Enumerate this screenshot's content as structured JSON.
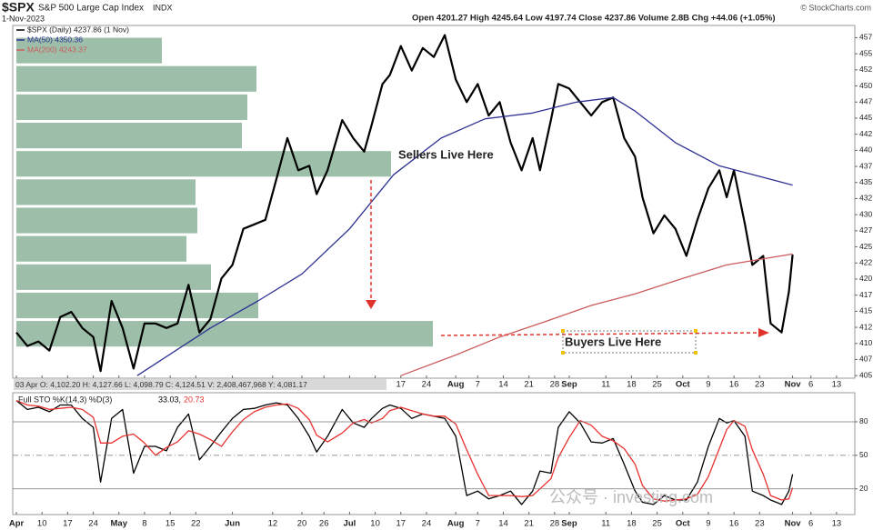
{
  "header": {
    "credit": "© StockCharts.com",
    "watermark": "公众号 · investing.com"
  },
  "chart_data": [
    {
      "type": "line",
      "title": "$SPX",
      "subtitle": "S&P 500 Large Cap Index",
      "exchange": "INDX",
      "date": "1-Nov-2023",
      "quote": "Open 4201.27  High 4245.64  Low 4197.74  Close 4237.86  Volume 2.8B  Chg +44.06 (+1.05%)",
      "info_bar": "03 Apr O: 4,102.20   H: 4,127.66   L: 4,098.79   C: 4,124.51   V: 2,408,467,968   Y: 4,081.17",
      "annotations": [
        "Sellers Live Here",
        "Buyers Live Here"
      ],
      "x": [
        0,
        3,
        6,
        9,
        12,
        15,
        18,
        21,
        23,
        26,
        29,
        32,
        35,
        38,
        41,
        44,
        47,
        50,
        53,
        56,
        59,
        62,
        65,
        68,
        71,
        74,
        77,
        80,
        82,
        85,
        89,
        92,
        95,
        97,
        100,
        102,
        105,
        108,
        111,
        114,
        117,
        120,
        123,
        126,
        129,
        132,
        135,
        138,
        141,
        143,
        146,
        148,
        151,
        154,
        157,
        160,
        163,
        166,
        169,
        171,
        174,
        177,
        180,
        183,
        186,
        189,
        192,
        194,
        196,
        199,
        201,
        204,
        206,
        209,
        211,
        212
      ],
      "xlim": [
        -1,
        229
      ],
      "xticks": [
        {
          "value": 0,
          "label": "Apr"
        },
        {
          "value": 7,
          "label": "10"
        },
        {
          "value": 14,
          "label": "17"
        },
        {
          "value": 21,
          "label": "24"
        },
        {
          "value": 28,
          "label": "May"
        },
        {
          "value": 35,
          "label": "8"
        },
        {
          "value": 42,
          "label": "15"
        },
        {
          "value": 49,
          "label": "22"
        },
        {
          "value": 59,
          "label": "Jun"
        },
        {
          "value": 70,
          "label": "12"
        },
        {
          "value": 78,
          "label": "20"
        },
        {
          "value": 84,
          "label": "26"
        },
        {
          "value": 91,
          "label": "Jul"
        },
        {
          "value": 98,
          "label": "10"
        },
        {
          "value": 105,
          "label": "17"
        },
        {
          "value": 112,
          "label": "24"
        },
        {
          "value": 120,
          "label": "Aug"
        },
        {
          "value": 126,
          "label": "7"
        },
        {
          "value": 133,
          "label": "14"
        },
        {
          "value": 140,
          "label": "21"
        },
        {
          "value": 147,
          "label": "28"
        },
        {
          "value": 151,
          "label": "Sep"
        },
        {
          "value": 161,
          "label": "11"
        },
        {
          "value": 168,
          "label": "18"
        },
        {
          "value": 175,
          "label": "25"
        },
        {
          "value": 182,
          "label": "Oct"
        },
        {
          "value": 189,
          "label": "9"
        },
        {
          "value": 196,
          "label": "16"
        },
        {
          "value": 203,
          "label": "23"
        },
        {
          "value": 212,
          "label": "Nov"
        },
        {
          "value": 217,
          "label": "6"
        },
        {
          "value": 224,
          "label": "13"
        }
      ],
      "ylim": [
        404.6,
        459.4
      ],
      "yticks": [
        405,
        {
          "value": 407.5,
          "label": "407"
        },
        410,
        {
          "value": 412.5,
          "label": "412"
        },
        415,
        {
          "value": 417.5,
          "label": "417"
        },
        420,
        {
          "value": 422.5,
          "label": "422"
        },
        425,
        {
          "value": 427.5,
          "label": "427"
        },
        430,
        {
          "value": 432.5,
          "label": "432"
        },
        435,
        {
          "value": 437.5,
          "label": "437"
        },
        440,
        {
          "value": 442.5,
          "label": "442"
        },
        445,
        {
          "value": 447.5,
          "label": "447"
        },
        450,
        {
          "value": 452.5,
          "label": "452"
        },
        455,
        {
          "value": 457.5,
          "label": "457"
        }
      ],
      "grid": false,
      "series": [
        {
          "name": "$SPX (Daily) 4237.86 (1 Nov)",
          "color": "#000000",
          "values": [
            411.7,
            409.6,
            410.3,
            408.9,
            414.1,
            414.9,
            412.4,
            411.0,
            405.7,
            416.6,
            412.4,
            406.1,
            413.1,
            413.1,
            412.4,
            413.1,
            419.1,
            411.7,
            413.8,
            420.1,
            422.2,
            427.8,
            428.5,
            429.2,
            435.5,
            441.9,
            436.9,
            437.6,
            433.2,
            436.9,
            444.7,
            441.9,
            439.8,
            443.9,
            450.3,
            451.7,
            456.2,
            452.4,
            455.9,
            454.5,
            457.9,
            451.0,
            447.5,
            450.3,
            445.4,
            447.5,
            441.2,
            436.9,
            441.9,
            436.9,
            444.7,
            450.3,
            449.6,
            447.5,
            445.4,
            447.5,
            448.2,
            441.9,
            439.0,
            432.7,
            427.1,
            429.9,
            427.8,
            423.6,
            429.2,
            434.1,
            436.9,
            432.7,
            436.9,
            428.5,
            422.2,
            423.6,
            413.1,
            411.7,
            418.0,
            423.8
          ]
        },
        {
          "name": "MA(50) 4350.36",
          "color": "#2e3192",
          "x": [
            33,
            53,
            66,
            78,
            91,
            103,
            116,
            128,
            141,
            153,
            163,
            169,
            180,
            192,
            212
          ],
          "values": [
            405,
            412.4,
            416.6,
            420.8,
            427.8,
            436.2,
            441.9,
            444.9,
            445.8,
            447.5,
            448.2,
            446.1,
            441.2,
            437.6,
            434.6
          ]
        },
        {
          "name": "MA(200) 4243.37",
          "color": "#cc5c5c",
          "x": [
            105,
            120,
            132,
            145,
            157,
            169,
            182,
            194,
            212
          ],
          "values": [
            405,
            408.2,
            411.0,
            413.5,
            415.9,
            417.7,
            420.1,
            422.2,
            423.9
          ]
        }
      ],
      "volume_by_price": {
        "color": "#9dbfa9",
        "bins": [
          409.3,
          413.7,
          418.1,
          422.5,
          426.9,
          431.3,
          435.7,
          440.1,
          444.5,
          448.9,
          453.3,
          457.7
        ],
        "values": [
          458,
          266,
          214,
          187,
          199,
          197,
          412,
          248,
          254,
          264,
          160
        ]
      }
    },
    {
      "type": "line",
      "title": "Full STO %K(14,3) %D(3)",
      "x": [
        0,
        3,
        6,
        9,
        12,
        15,
        18,
        21,
        23,
        26,
        29,
        32,
        35,
        38,
        41,
        44,
        47,
        50,
        53,
        56,
        59,
        62,
        65,
        68,
        71,
        74,
        77,
        80,
        82,
        85,
        89,
        92,
        95,
        97,
        100,
        102,
        105,
        108,
        111,
        114,
        117,
        120,
        123,
        126,
        129,
        132,
        135,
        138,
        141,
        143,
        146,
        148,
        151,
        154,
        157,
        160,
        163,
        166,
        169,
        171,
        174,
        177,
        180,
        183,
        186,
        189,
        192,
        194,
        196,
        199,
        201,
        204,
        206,
        209,
        211,
        212
      ],
      "xlim": [
        -1,
        229
      ],
      "xticks": [
        {
          "value": 0,
          "label": "Apr"
        },
        {
          "value": 7,
          "label": "10"
        },
        {
          "value": 14,
          "label": "17"
        },
        {
          "value": 21,
          "label": "24"
        },
        {
          "value": 28,
          "label": "May"
        },
        {
          "value": 35,
          "label": "8"
        },
        {
          "value": 42,
          "label": "15"
        },
        {
          "value": 49,
          "label": "22"
        },
        {
          "value": 59,
          "label": "Jun"
        },
        {
          "value": 70,
          "label": "12"
        },
        {
          "value": 78,
          "label": "20"
        },
        {
          "value": 84,
          "label": "26"
        },
        {
          "value": 91,
          "label": "Jul"
        },
        {
          "value": 98,
          "label": "10"
        },
        {
          "value": 105,
          "label": "17"
        },
        {
          "value": 112,
          "label": "24"
        },
        {
          "value": 120,
          "label": "Aug"
        },
        {
          "value": 126,
          "label": "7"
        },
        {
          "value": 133,
          "label": "14"
        },
        {
          "value": 140,
          "label": "21"
        },
        {
          "value": 147,
          "label": "28"
        },
        {
          "value": 151,
          "label": "Sep"
        },
        {
          "value": 161,
          "label": "11"
        },
        {
          "value": 168,
          "label": "18"
        },
        {
          "value": 175,
          "label": "25"
        },
        {
          "value": 182,
          "label": "Oct"
        },
        {
          "value": 189,
          "label": "9"
        },
        {
          "value": 196,
          "label": "16"
        },
        {
          "value": 203,
          "label": "23"
        },
        {
          "value": 212,
          "label": "Nov"
        },
        {
          "value": 217,
          "label": "6"
        },
        {
          "value": 224,
          "label": "13"
        }
      ],
      "ylim": [
        -3,
        106
      ],
      "yticks": [
        20,
        50,
        80
      ],
      "grid": true,
      "series": [
        {
          "name": "33.03,",
          "color": "#000000",
          "values": [
            99,
            91,
            93,
            89,
            95,
            95,
            83,
            75,
            26,
            83,
            91,
            34,
            58,
            58,
            54,
            75,
            87,
            46,
            58,
            71,
            83,
            91,
            92,
            95,
            97,
            95,
            83,
            67,
            53,
            67,
            91,
            79,
            75,
            83,
            92,
            95,
            92,
            83,
            87,
            85,
            83,
            67,
            14,
            18,
            11,
            14,
            18,
            6,
            18,
            36,
            34,
            75,
            89,
            79,
            62,
            61,
            65,
            42,
            18,
            8,
            6,
            14,
            10,
            10,
            26,
            58,
            83,
            79,
            81,
            67,
            18,
            14,
            10,
            6,
            18,
            33
          ]
        },
        {
          "name": "20.73",
          "color": "#e8312f",
          "values": [
            99,
            95,
            94,
            91,
            92,
            93,
            91,
            84,
            61,
            61,
            67,
            69,
            61,
            50,
            57,
            62,
            72,
            69,
            64,
            58,
            71,
            82,
            89,
            93,
            95,
            96,
            92,
            82,
            68,
            62,
            70,
            79,
            82,
            79,
            83,
            90,
            93,
            90,
            87,
            85,
            85,
            78,
            55,
            33,
            14,
            14,
            14,
            13,
            14,
            20,
            29,
            48,
            66,
            81,
            77,
            67,
            63,
            56,
            42,
            23,
            11,
            9,
            10,
            11,
            15,
            31,
            56,
            73,
            81,
            76,
            55,
            33,
            14,
            10,
            11,
            21
          ]
        }
      ]
    }
  ]
}
